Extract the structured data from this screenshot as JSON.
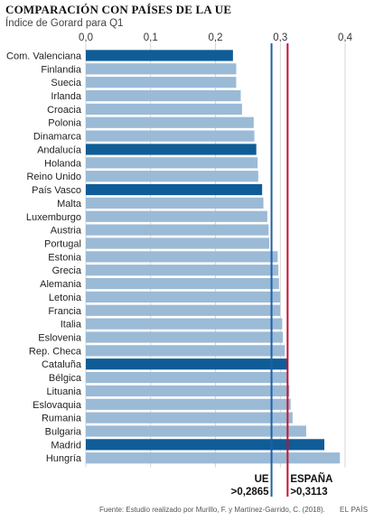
{
  "header": {
    "title": "COMPARACIÓN CON PAÍSES DE LA UE",
    "subtitle": "Índice de Gorard para Q1"
  },
  "footer": {
    "source": "Fuente: Estudio realizado por Murillo, F. y Martínez-Garrido, C. (2018).",
    "brand": "EL PAÍS"
  },
  "colors": {
    "bar": "#9bbad6",
    "highlight": "#0f5c97",
    "ue_line": "#1f5fa8",
    "espana_line": "#c8102e",
    "grid": "#cccccc"
  },
  "chart_data": {
    "type": "bar",
    "orientation": "horizontal",
    "title": "COMPARACIÓN CON PAÍSES DE LA UE",
    "subtitle": "Índice de Gorard para Q1",
    "xlim": [
      0,
      0.4
    ],
    "x_ticks": [
      "0,0",
      "0,1",
      "0,2",
      "0,3",
      "0,4"
    ],
    "x_tick_values": [
      0,
      0.1,
      0.2,
      0.3,
      0.4
    ],
    "grid": true,
    "categories": [
      "Com. Valenciana",
      "Finlandia",
      "Suecia",
      "Irlanda",
      "Croacia",
      "Polonia",
      "Dinamarca",
      "Andalucía",
      "Holanda",
      "Reino Unido",
      "País Vasco",
      "Malta",
      "Luxemburgo",
      "Austria",
      "Portugal",
      "Estonia",
      "Grecia",
      "Alemania",
      "Letonia",
      "Francia",
      "Italia",
      "Eslovenia",
      "Rep. Checa",
      "Cataluña",
      "Bélgica",
      "Lituania",
      "Eslovaquia",
      "Rumania",
      "Bulgaria",
      "Madrid",
      "Hungría"
    ],
    "values": [
      0.227,
      0.232,
      0.232,
      0.239,
      0.241,
      0.259,
      0.26,
      0.263,
      0.265,
      0.266,
      0.272,
      0.274,
      0.28,
      0.282,
      0.283,
      0.296,
      0.297,
      0.298,
      0.3,
      0.3,
      0.303,
      0.304,
      0.307,
      0.311,
      0.312,
      0.314,
      0.316,
      0.319,
      0.34,
      0.368,
      0.392
    ],
    "highlighted": [
      "Com. Valenciana",
      "Andalucía",
      "País Vasco",
      "Cataluña",
      "Madrid"
    ],
    "reference_lines": [
      {
        "label": "UE",
        "value_label": ">0,2865",
        "value": 0.2865
      },
      {
        "label": "ESPAÑA",
        "value_label": ">0,3113",
        "value": 0.3113
      }
    ]
  }
}
